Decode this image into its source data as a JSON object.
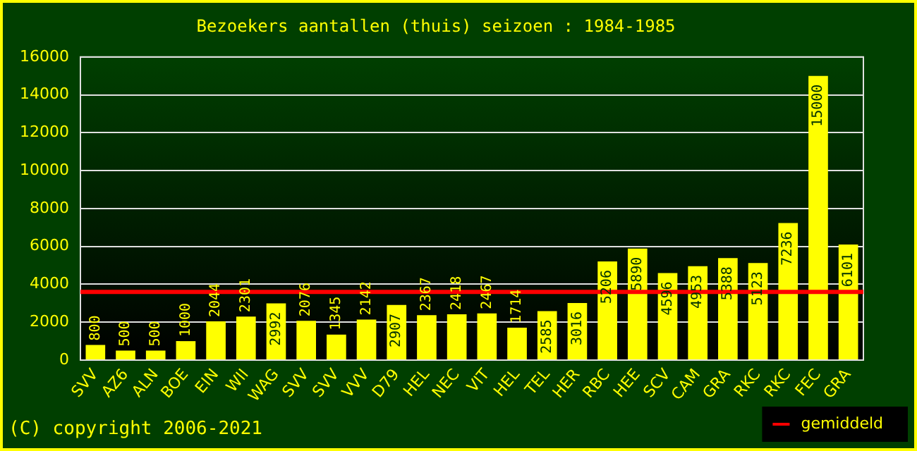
{
  "chart_data": {
    "type": "bar",
    "title": "Bezoekers aantallen (thuis) seizoen : 1984-1985",
    "categories": [
      "SVV",
      "AZ6",
      "ALN",
      "BOE",
      "EIN",
      "WII",
      "WAG",
      "SVV",
      "SVV",
      "VVV",
      "D79",
      "HEL",
      "NEC",
      "VIT",
      "HEL",
      "TEL",
      "HER",
      "RBC",
      "HEE",
      "SCV",
      "CAM",
      "GRA",
      "RKC",
      "RKC",
      "FEC",
      "GRA"
    ],
    "values": [
      800,
      500,
      500,
      1000,
      2044,
      2301,
      2992,
      2076,
      1345,
      2142,
      2907,
      2367,
      2418,
      2467,
      1714,
      2585,
      3016,
      5206,
      5890,
      4596,
      4953,
      5388,
      5123,
      7236,
      15000,
      6101
    ],
    "color": "#ffff00",
    "ylim": [
      0,
      16000
    ],
    "yticks": [
      0,
      2000,
      4000,
      6000,
      8000,
      10000,
      12000,
      14000,
      16000
    ],
    "grid": "y",
    "data_labels": true,
    "legend": "bottom right",
    "ref_lines": [
      {
        "axis": "y",
        "value": 3600,
        "label": "gemiddeld",
        "color": "#ff0000"
      }
    ],
    "annotations": [
      "(C) copyright 2006-2021"
    ]
  }
}
